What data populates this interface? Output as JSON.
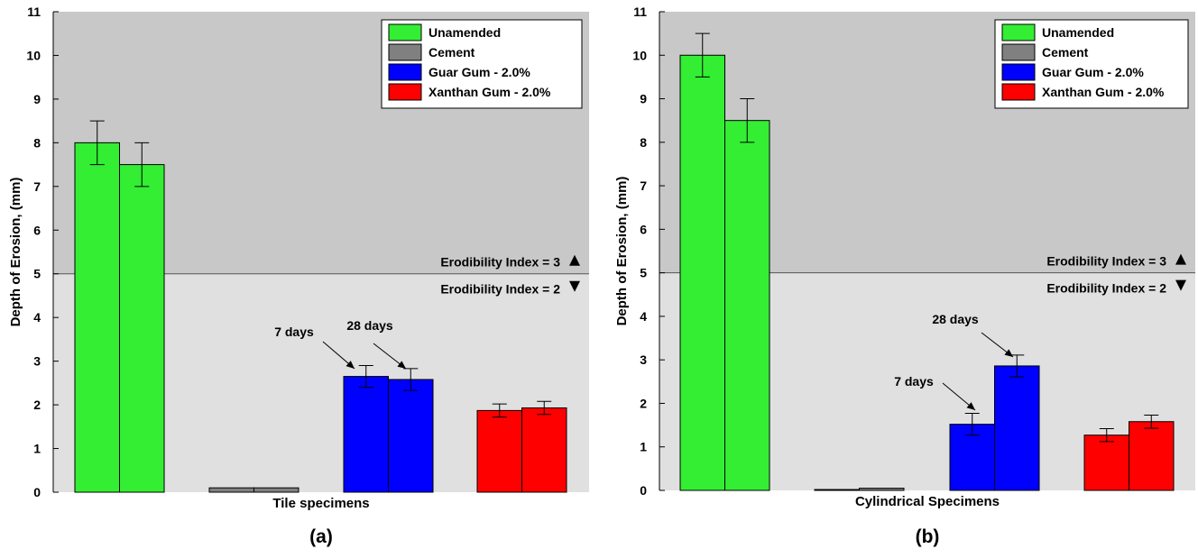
{
  "chart_data": [
    {
      "type": "bar",
      "panel_label": "(a)",
      "xlabel": "Tile specimens",
      "ylabel": "Depth of Erosion, (mm)",
      "ylim": [
        0,
        11
      ],
      "yticks": [
        0,
        1,
        2,
        3,
        4,
        5,
        6,
        7,
        8,
        9,
        10,
        11
      ],
      "grid": false,
      "legend_position": "top-right",
      "threshold": {
        "value": 5,
        "label_above": "Erodibility Index = 3",
        "label_below": "Erodibility Index = 2"
      },
      "annotations": [
        "7 days",
        "28 days"
      ],
      "groups": [
        {
          "name": "Unamended",
          "color": "#33ee33",
          "values": [
            8.0,
            7.5
          ],
          "errors": [
            0.5,
            0.5
          ]
        },
        {
          "name": "Cement",
          "color": "#808080",
          "values": [
            0.1,
            0.1
          ],
          "errors": [
            0,
            0
          ]
        },
        {
          "name": "Guar Gum - 2.0%",
          "color": "#0000ff",
          "values": [
            2.65,
            2.58
          ],
          "errors": [
            0.25,
            0.25
          ]
        },
        {
          "name": "Xanthan Gum - 2.0%",
          "color": "#ff0000",
          "values": [
            1.87,
            1.93
          ],
          "errors": [
            0.15,
            0.15
          ]
        }
      ]
    },
    {
      "type": "bar",
      "panel_label": "(b)",
      "xlabel": "Cylindrical Specimens",
      "ylabel": "Depth of Erosion, (mm)",
      "ylim": [
        0,
        11
      ],
      "yticks": [
        0,
        1,
        2,
        3,
        4,
        5,
        6,
        7,
        8,
        9,
        10,
        11
      ],
      "grid": false,
      "legend_position": "top-right",
      "threshold": {
        "value": 5,
        "label_above": "Erodibility Index = 3",
        "label_below": "Erodibility Index = 2"
      },
      "annotations": [
        "7 days",
        "28 days"
      ],
      "groups": [
        {
          "name": "Unamended",
          "color": "#33ee33",
          "values": [
            10.0,
            8.5
          ],
          "errors": [
            0.5,
            0.5
          ]
        },
        {
          "name": "Cement",
          "color": "#808080",
          "values": [
            0.02,
            0.05
          ],
          "errors": [
            0,
            0
          ]
        },
        {
          "name": "Guar Gum - 2.0%",
          "color": "#0000ff",
          "values": [
            1.52,
            2.86
          ],
          "errors": [
            0.25,
            0.25
          ]
        },
        {
          "name": "Xanthan Gum - 2.0%",
          "color": "#ff0000",
          "values": [
            1.27,
            1.58
          ],
          "errors": [
            0.15,
            0.15
          ]
        }
      ]
    }
  ],
  "colors": {
    "upper_zone": "#c8c8c8",
    "lower_zone": "#e0e0e0"
  }
}
